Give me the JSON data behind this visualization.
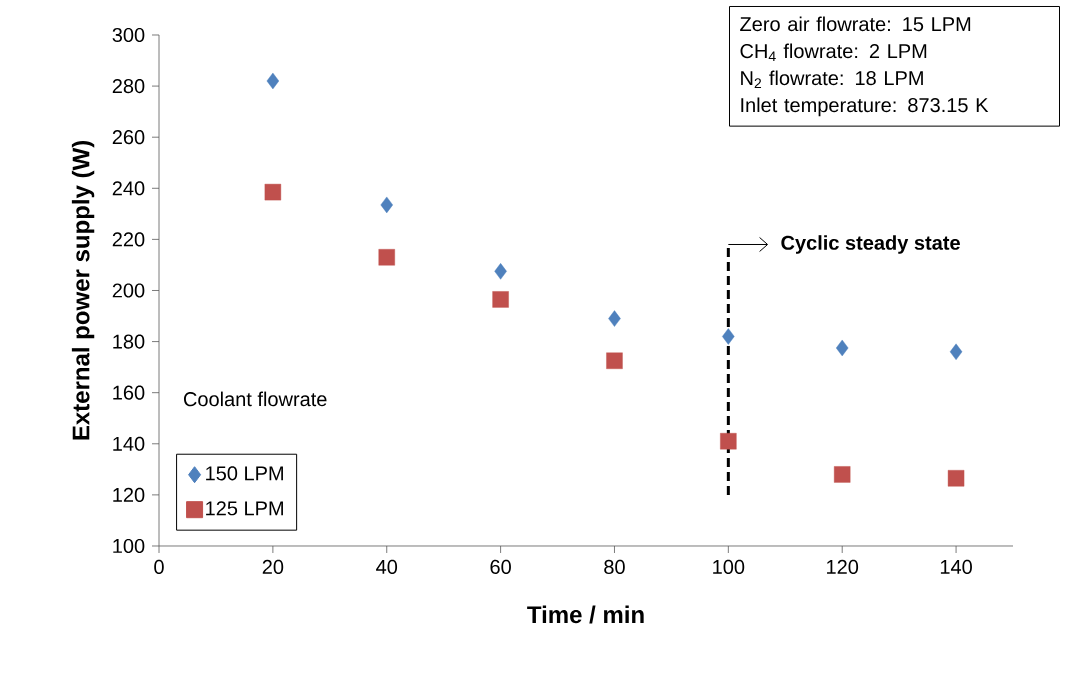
{
  "chart_data": {
    "type": "scatter",
    "xlabel": "Time / min",
    "ylabel": "External power supply (W)",
    "legend_title": "Coolant flowrate",
    "legend": "bottom left",
    "grid": false,
    "x": [
      20,
      40,
      60,
      80,
      100,
      120,
      140
    ],
    "series": [
      {
        "name": "150 LPM",
        "color": "#4f81bd",
        "marker": "diamond",
        "values": [
          282,
          233.5,
          207.5,
          189,
          182,
          177.5,
          176
        ]
      },
      {
        "name": "125 LPM",
        "color": "#c0504d",
        "marker": "square",
        "values": [
          238.5,
          213,
          196.5,
          172.5,
          141,
          128,
          126.5
        ]
      }
    ],
    "xlim": [
      0,
      150
    ],
    "xticks": [
      0,
      20,
      40,
      60,
      80,
      100,
      120,
      140
    ],
    "ylim": [
      100,
      300
    ],
    "yticks": [
      100,
      120,
      140,
      160,
      180,
      200,
      220,
      240,
      260,
      280,
      300
    ],
    "ref_lines": [
      {
        "axis": "x",
        "value": 100,
        "color": "#000000",
        "line_style": "dashed"
      }
    ],
    "annotations": [
      {
        "text": "Cyclic steady state",
        "x": 100,
        "y": 218
      },
      "Zero air flowrate: 15 LPM",
      "CH$_{4}$ flowrate: 2 LPM",
      "N$_{2}$ flowrate: 18 LPM",
      "Inlet temperature: 873.15 K"
    ]
  }
}
